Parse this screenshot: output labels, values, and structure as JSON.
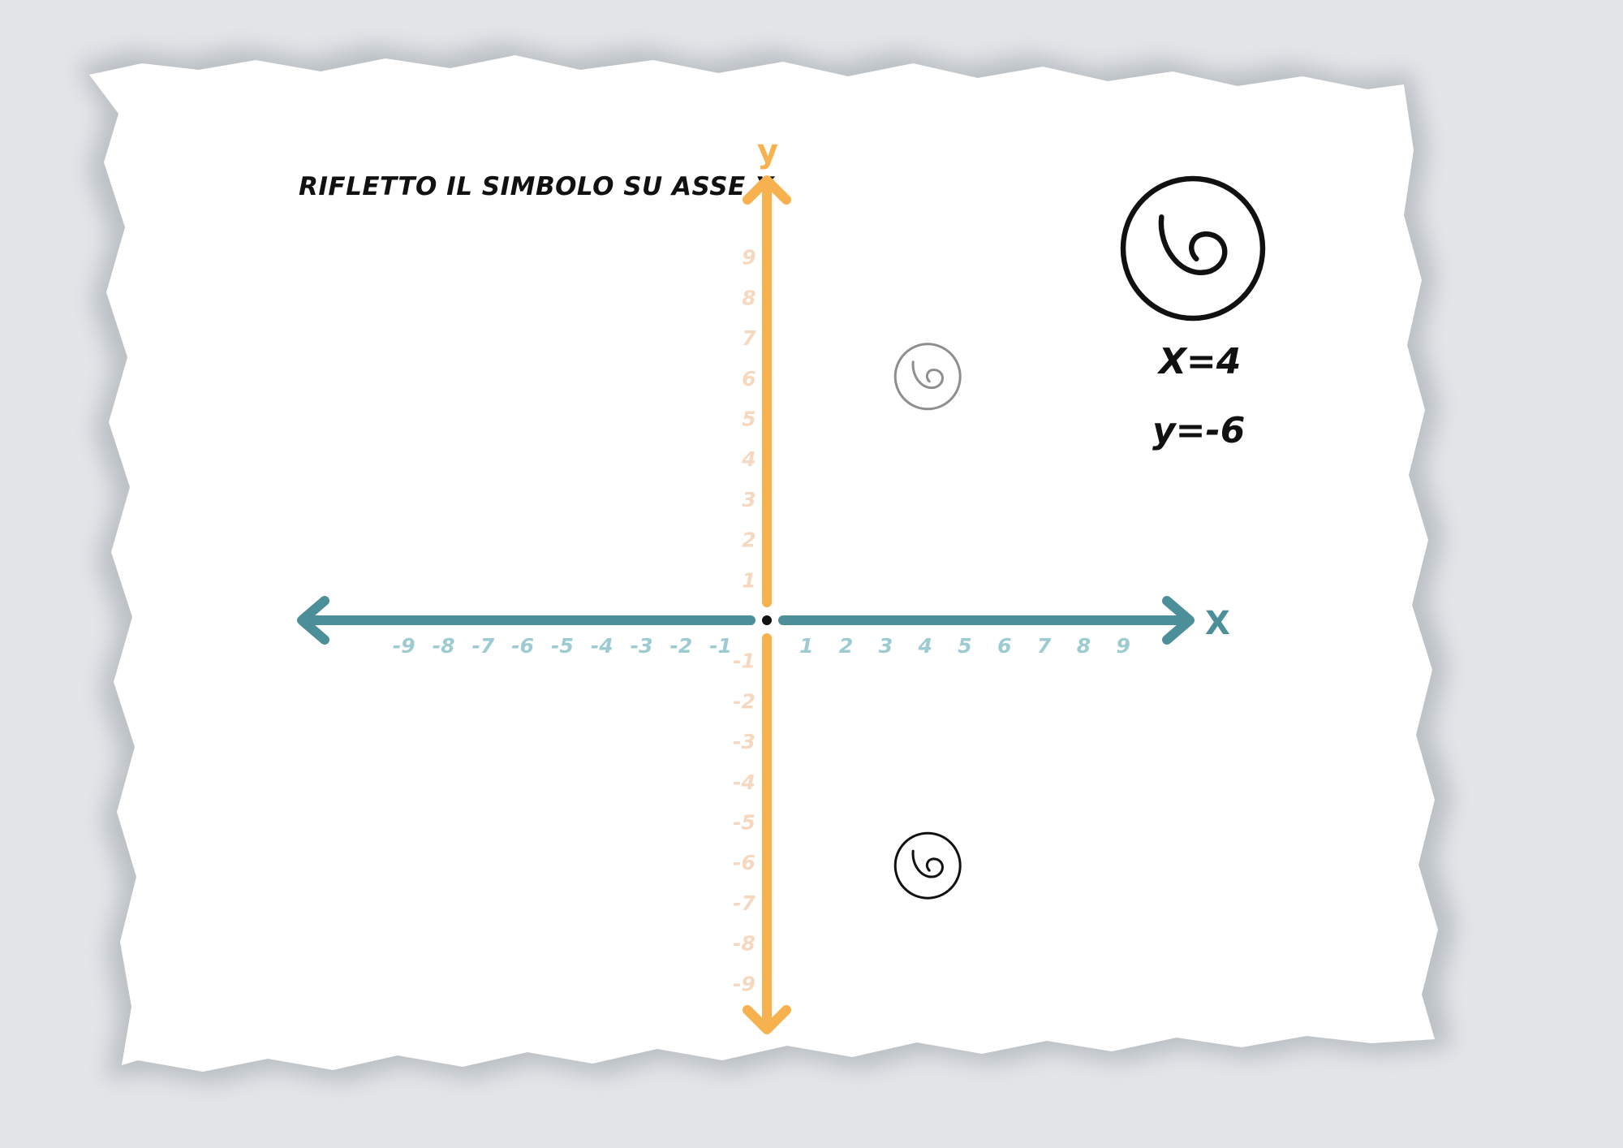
{
  "instruction": "RIFLETTO IL SIMBOLO SU ASSE X",
  "legend": {
    "x_value": "X=4",
    "y_value": "y=-6",
    "symbol_icon": "spiral-circle-icon"
  },
  "axes": {
    "x_label": "X",
    "y_label": "y",
    "x_ticks_negative": [
      "-9",
      "-8",
      "-7",
      "-6",
      "-5",
      "-4",
      "-3",
      "-2",
      "-1"
    ],
    "x_ticks_positive": [
      "1",
      "2",
      "3",
      "4",
      "5",
      "6",
      "7",
      "8",
      "9"
    ],
    "y_ticks_positive": [
      "9",
      "8",
      "7",
      "6",
      "5",
      "4",
      "3",
      "2",
      "1"
    ],
    "y_ticks_negative": [
      "-1",
      "-2",
      "-3",
      "-4",
      "-5",
      "-6",
      "-7",
      "-8",
      "-9"
    ]
  },
  "colors": {
    "x_axis": "#4c8f99",
    "y_axis": "#f7b14f",
    "x_ticks": "#9ccbd1",
    "y_ticks": "#f5d8bf",
    "original_symbol": "#8e8e8e",
    "reflected_symbol": "#111111"
  },
  "symbols": [
    {
      "name": "original",
      "x": 4,
      "y": 6
    },
    {
      "name": "reflected",
      "x": 4,
      "y": -6
    }
  ]
}
